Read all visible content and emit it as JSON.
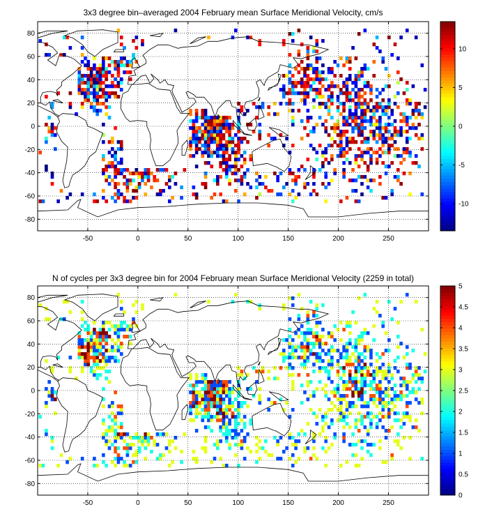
{
  "chart_data": [
    {
      "type": "heatmap",
      "title": "3x3 degree bin–averaged 2004 February mean Surface Meridional Velocity, cm/s",
      "xlim": [
        -100,
        290
      ],
      "ylim": [
        -90,
        90
      ],
      "x_ticks": [
        -50,
        0,
        50,
        100,
        150,
        200,
        250
      ],
      "y_ticks": [
        -80,
        -60,
        -40,
        -20,
        0,
        20,
        40,
        60,
        80
      ],
      "grid": true,
      "colormap": "jet",
      "colorbar": {
        "range": [
          -13.5,
          13.5
        ],
        "ticks": [
          -10,
          -5,
          0,
          5,
          10
        ]
      },
      "bin_size_deg": 3
    },
    {
      "type": "heatmap",
      "title": "N of cycles per 3x3 degree bin for 2004 February mean Surface Meridional Velocity (2259 in total)",
      "xlim": [
        -100,
        290
      ],
      "ylim": [
        -90,
        90
      ],
      "x_ticks": [
        -50,
        0,
        50,
        100,
        150,
        200,
        250
      ],
      "y_ticks": [
        -80,
        -60,
        -40,
        -20,
        0,
        20,
        40,
        60,
        80
      ],
      "grid": true,
      "colormap": "jet",
      "colorbar": {
        "range": [
          0,
          5
        ],
        "ticks": [
          0,
          0.5,
          1,
          1.5,
          2,
          2.5,
          3,
          3.5,
          4,
          4.5,
          5
        ]
      },
      "bin_size_deg": 3
    }
  ]
}
